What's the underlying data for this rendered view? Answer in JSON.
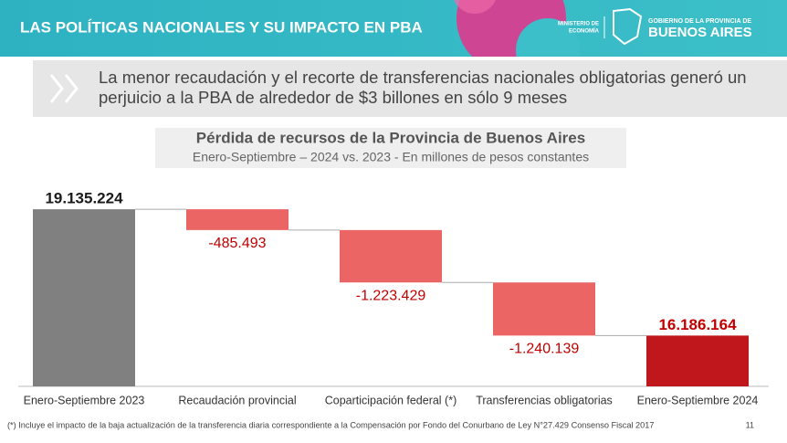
{
  "header": {
    "title": "LAS POLÍTICAS NACIONALES Y SU IMPACTO EN PBA",
    "ministry": [
      "MINISTERIO DE",
      "ECONOMÍA"
    ],
    "gov_line": "GOBIERNO DE LA PROVINCIA DE",
    "gov_name": "BUENOS AIRES"
  },
  "highlight": {
    "lines": [
      "La menor recaudación y el recorte de transferencias nacionales obligatorias generó un",
      "perjuicio a la PBA de alrededor de $3 billones en sólo 9 meses"
    ]
  },
  "chart_data": {
    "type": "waterfall",
    "title": "Pérdida de recursos de la Provincia de Buenos Aires",
    "subtitle": "Enero-Septiembre – 2024 vs. 2023 - En millones de pesos constantes",
    "categories": [
      "Enero-Septiembre 2023",
      "Recaudación provincial",
      "Coparticipación federal (*)",
      "Transferencias obligatorias",
      "Enero-Septiembre 2024"
    ],
    "values": [
      19135224,
      -485493,
      -1223429,
      -1240139,
      16186164
    ],
    "value_labels": [
      "19.135.224",
      "-485.493",
      "-1.223.429",
      "-1.240.139",
      "16.186.164"
    ],
    "colors": [
      "#808080",
      "#ec6565",
      "#ec6565",
      "#ec6565",
      "#c0171c"
    ],
    "label_colors": [
      "#1a1a1a",
      "#c00000",
      "#c00000",
      "#c00000",
      "#c00000"
    ],
    "ylim": [
      15000000,
      19500000
    ]
  },
  "footnote": "(*) Incluye el impacto de la baja actualización de la transferencia diaria correspondiente a la Compensación por Fondo del Conurbano de Ley N°27.429 Consenso Fiscal 2017",
  "page_number": "11"
}
